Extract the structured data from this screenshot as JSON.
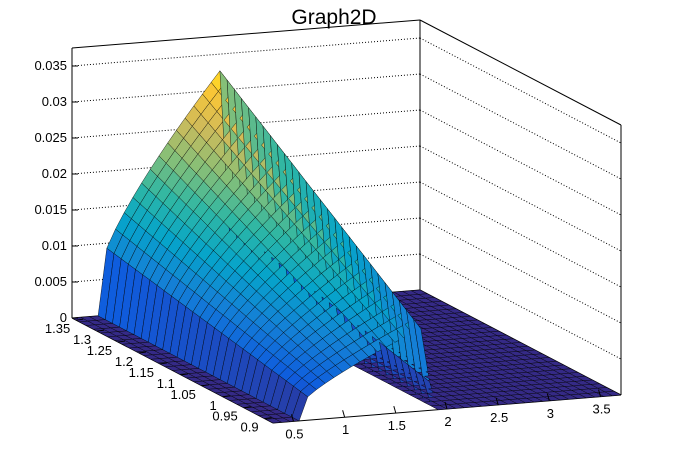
{
  "chart_data": {
    "type": "surface",
    "title": "Graph2D",
    "axes": {
      "x": {
        "range": [
          0.3,
          3.7
        ],
        "ticks": [
          "0.5",
          "1",
          "1.5",
          "2",
          "2.5",
          "3",
          "3.5"
        ]
      },
      "y": {
        "range": [
          0.88,
          1.36
        ],
        "ticks": [
          "0.9",
          "0.95",
          "1",
          "1.05",
          "1.1",
          "1.15",
          "1.2",
          "1.25",
          "1.3",
          "1.35"
        ]
      },
      "z": {
        "range": [
          0,
          0.0375
        ],
        "ticks": [
          "0",
          "0.005",
          "0.01",
          "0.015",
          "0.02",
          "0.025",
          "0.03",
          "0.035"
        ]
      }
    },
    "grid": true,
    "surface": {
      "description_of_shape": "mass-like distribution: zero for x below about 0.6 and above about 1.85; rises with x to a peak of about 0.0345 near x = 1.8, y = 1.3",
      "x_support": [
        0.6,
        1.85
      ],
      "peak": {
        "x": 1.8,
        "y": 1.3,
        "z": 0.0345
      },
      "z_max": 0.035
    },
    "colormap": [
      "#352a87",
      "#0f5cdd",
      "#1481d6",
      "#06a4ca",
      "#2eb7a4",
      "#87bf77",
      "#d1bb59",
      "#fec832",
      "#f9fb0e"
    ]
  }
}
